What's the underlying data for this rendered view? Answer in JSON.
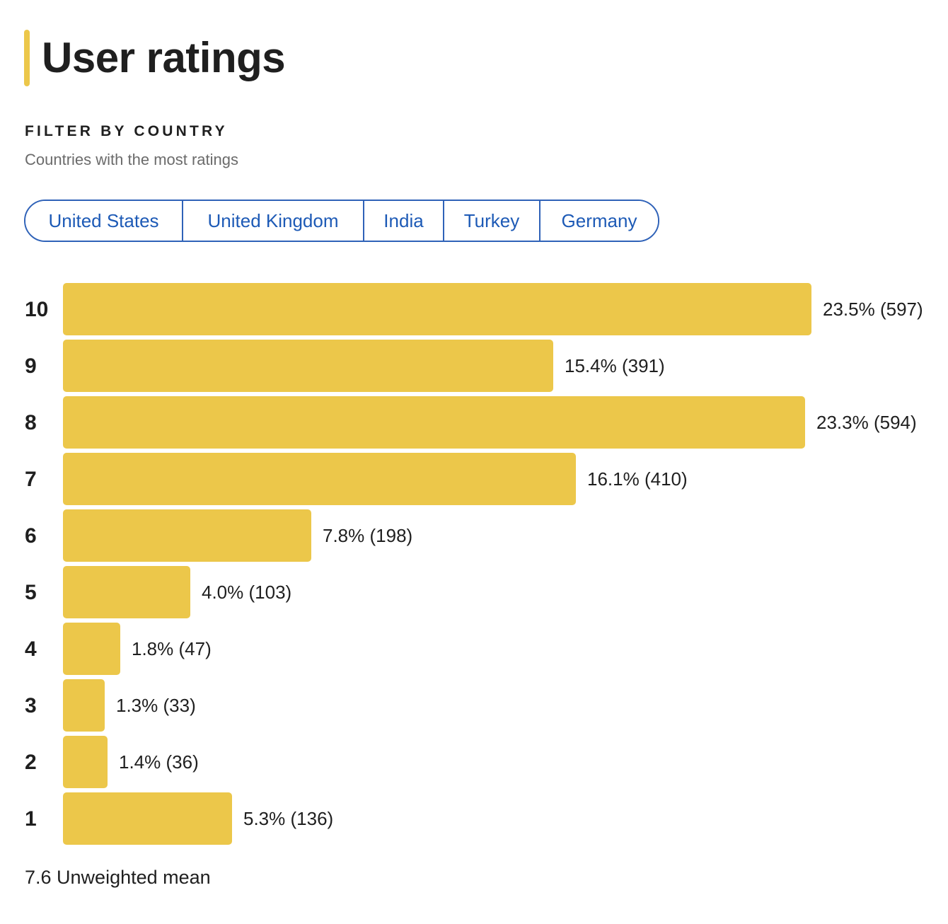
{
  "header": {
    "title": "User ratings",
    "accent_color": "#ecc74a"
  },
  "filter": {
    "heading": "FILTER BY COUNTRY",
    "subtitle": "Countries with the most ratings",
    "countries": [
      "United States",
      "United Kingdom",
      "India",
      "Turkey",
      "Germany"
    ]
  },
  "chart_data": {
    "type": "bar",
    "orientation": "horizontal",
    "categories": [
      "10",
      "9",
      "8",
      "7",
      "6",
      "5",
      "4",
      "3",
      "2",
      "1"
    ],
    "values": [
      23.5,
      15.4,
      23.3,
      16.1,
      7.8,
      4.0,
      1.8,
      1.3,
      1.4,
      5.3
    ],
    "counts": [
      597,
      391,
      594,
      410,
      198,
      103,
      47,
      33,
      36,
      136
    ],
    "data_labels": [
      "23.5% (597)",
      "15.4% (391)",
      "23.3% (594)",
      "16.1% (410)",
      "7.8% (198)",
      "4.0% (103)",
      "1.8% (47)",
      "1.3% (33)",
      "1.4% (36)",
      "5.3% (136)"
    ],
    "bar_color": "#ecc74a",
    "grid": false,
    "legend": "none"
  },
  "summary": {
    "mean_text": "7.6 Unweighted mean"
  }
}
